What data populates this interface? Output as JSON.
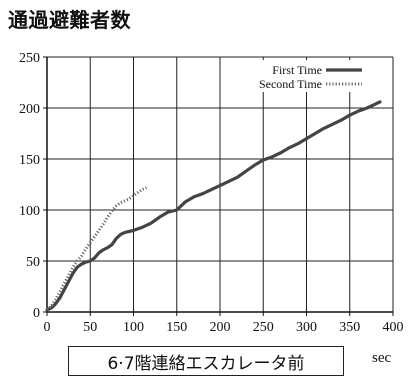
{
  "header": {
    "title": "通過避難者数"
  },
  "caption": {
    "location": "6·7階連絡エスカレータ前",
    "x_unit": "sec"
  },
  "chart_data": {
    "type": "line",
    "title": "通過避難者数",
    "xlabel": "sec",
    "ylabel": "",
    "xlim": [
      0,
      400
    ],
    "ylim": [
      0,
      250
    ],
    "x_ticks": [
      0,
      50,
      100,
      150,
      200,
      250,
      300,
      350,
      400
    ],
    "y_ticks": [
      0,
      50,
      100,
      150,
      200,
      250
    ],
    "grid": true,
    "legend_position": "top-right",
    "series": [
      {
        "name": "First Time",
        "style": "solid",
        "color": "#444444",
        "points": [
          [
            0,
            2
          ],
          [
            5,
            4
          ],
          [
            10,
            8
          ],
          [
            15,
            14
          ],
          [
            20,
            22
          ],
          [
            25,
            30
          ],
          [
            30,
            38
          ],
          [
            35,
            44
          ],
          [
            40,
            47
          ],
          [
            45,
            49
          ],
          [
            50,
            50
          ],
          [
            55,
            53
          ],
          [
            60,
            58
          ],
          [
            65,
            61
          ],
          [
            70,
            63
          ],
          [
            75,
            66
          ],
          [
            80,
            72
          ],
          [
            85,
            76
          ],
          [
            90,
            78
          ],
          [
            100,
            80
          ],
          [
            110,
            83
          ],
          [
            120,
            87
          ],
          [
            130,
            93
          ],
          [
            140,
            98
          ],
          [
            150,
            100
          ],
          [
            160,
            108
          ],
          [
            170,
            113
          ],
          [
            180,
            116
          ],
          [
            190,
            120
          ],
          [
            200,
            124
          ],
          [
            210,
            128
          ],
          [
            220,
            132
          ],
          [
            230,
            138
          ],
          [
            240,
            144
          ],
          [
            250,
            149
          ],
          [
            260,
            152
          ],
          [
            270,
            156
          ],
          [
            280,
            161
          ],
          [
            290,
            165
          ],
          [
            300,
            170
          ],
          [
            310,
            175
          ],
          [
            320,
            180
          ],
          [
            330,
            184
          ],
          [
            340,
            188
          ],
          [
            350,
            193
          ],
          [
            360,
            197
          ],
          [
            370,
            200
          ],
          [
            380,
            204
          ],
          [
            385,
            206
          ]
        ]
      },
      {
        "name": "Second Time",
        "style": "dotted",
        "color": "#666666",
        "points": [
          [
            0,
            2
          ],
          [
            5,
            6
          ],
          [
            10,
            12
          ],
          [
            15,
            20
          ],
          [
            20,
            28
          ],
          [
            25,
            36
          ],
          [
            30,
            44
          ],
          [
            35,
            50
          ],
          [
            40,
            55
          ],
          [
            45,
            62
          ],
          [
            50,
            68
          ],
          [
            55,
            74
          ],
          [
            60,
            80
          ],
          [
            65,
            86
          ],
          [
            70,
            93
          ],
          [
            75,
            99
          ],
          [
            80,
            104
          ],
          [
            85,
            107
          ],
          [
            90,
            109
          ],
          [
            95,
            111
          ],
          [
            100,
            114
          ],
          [
            105,
            117
          ],
          [
            110,
            120
          ],
          [
            115,
            122
          ]
        ]
      }
    ]
  }
}
